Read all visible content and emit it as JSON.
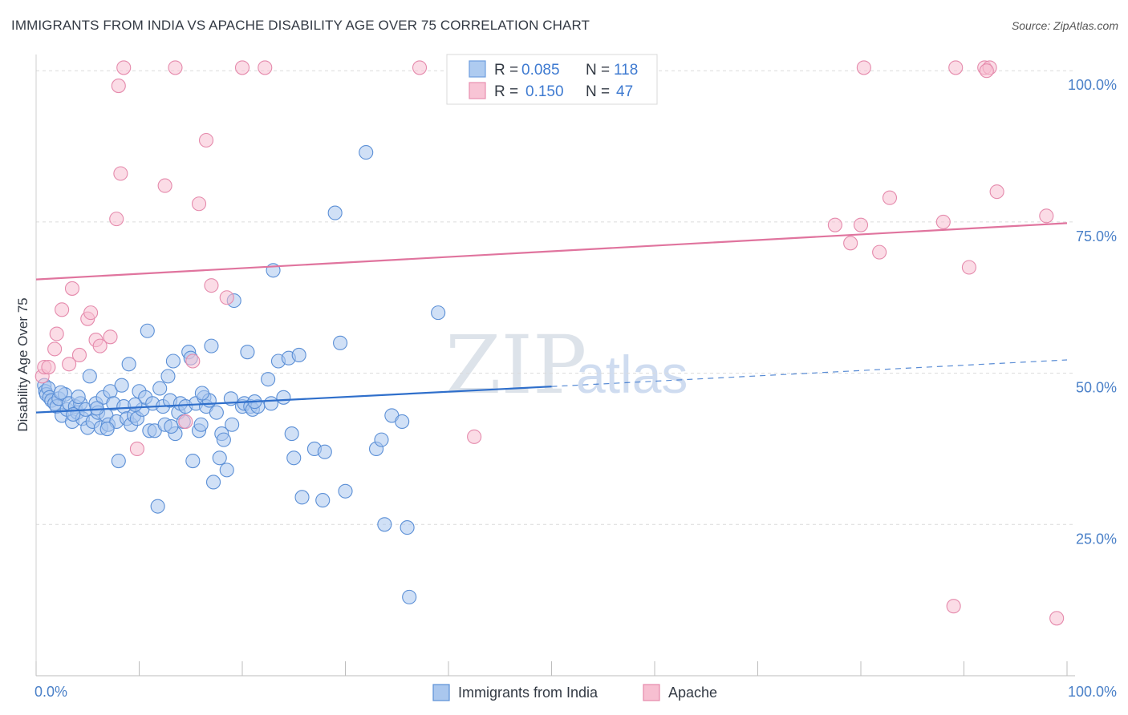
{
  "title": "IMMIGRANTS FROM INDIA VS APACHE DISABILITY AGE OVER 75 CORRELATION CHART",
  "source": "Source: ZipAtlas.com",
  "watermark": {
    "zip": "ZIP",
    "atlas": "atlas"
  },
  "chart_data": {
    "type": "scatter",
    "ylabel": "Disability Age Over 75",
    "xlabel": "",
    "xlim": [
      0,
      100
    ],
    "ylim": [
      0,
      104
    ],
    "x_tick_labels": [
      "0.0%",
      "100.0%"
    ],
    "y_ticks": [
      25,
      50,
      75,
      100
    ],
    "y_tick_labels": [
      "25.0%",
      "50.0%",
      "75.0%",
      "100.0%"
    ],
    "grid": true,
    "legend_top": [
      {
        "r_label": "R =",
        "r_value": "0.085",
        "n_label": "N =",
        "n_value": "118",
        "color": "#6f9fe0",
        "fill": "#aecbf0"
      },
      {
        "r_label": "R =",
        "r_value": "0.150",
        "n_label": "N =",
        "n_value": "47",
        "color": "#e890b0",
        "fill": "#f8c4d5"
      }
    ],
    "series": [
      {
        "name": "Immigrants from India",
        "color": "#5b8fd6",
        "fill": "#aac7ee",
        "trend_color": "#2f6fcb",
        "trend": {
          "x0": 0,
          "y0": 43.5,
          "x1": 50,
          "y1": 47.8,
          "dash_x1": 100,
          "dash_y1": 52.2
        },
        "points": [
          [
            0.8,
            48
          ],
          [
            0.9,
            47
          ],
          [
            1,
            46.5
          ],
          [
            1.2,
            47.5
          ],
          [
            1.3,
            46
          ],
          [
            1.5,
            45.5
          ],
          [
            1.8,
            45
          ],
          [
            2,
            44.5
          ],
          [
            2.2,
            45.8
          ],
          [
            2.5,
            43
          ],
          [
            2.8,
            46.5
          ],
          [
            3,
            44
          ],
          [
            3.2,
            45
          ],
          [
            3.5,
            42
          ],
          [
            3.8,
            44.5
          ],
          [
            4,
            43.5
          ],
          [
            4.3,
            45
          ],
          [
            4.5,
            42.5
          ],
          [
            4.8,
            44
          ],
          [
            5,
            41
          ],
          [
            5.2,
            49.5
          ],
          [
            5.5,
            42
          ],
          [
            5.8,
            45
          ],
          [
            6,
            43.5
          ],
          [
            6.3,
            41
          ],
          [
            6.5,
            46
          ],
          [
            6.8,
            43
          ],
          [
            7,
            41.5
          ],
          [
            7.2,
            47
          ],
          [
            7.5,
            45
          ],
          [
            7.8,
            42
          ],
          [
            8,
            35.5
          ],
          [
            8.3,
            48
          ],
          [
            8.5,
            44.5
          ],
          [
            8.8,
            42.5
          ],
          [
            9,
            51.5
          ],
          [
            9.2,
            41.5
          ],
          [
            9.5,
            43
          ],
          [
            9.8,
            42.5
          ],
          [
            10,
            47
          ],
          [
            10.3,
            44
          ],
          [
            10.6,
            46
          ],
          [
            10.8,
            57
          ],
          [
            11,
            40.5
          ],
          [
            11.3,
            45
          ],
          [
            11.5,
            40.5
          ],
          [
            11.8,
            28
          ],
          [
            12,
            47.5
          ],
          [
            12.3,
            44.5
          ],
          [
            12.5,
            41.5
          ],
          [
            12.8,
            49.5
          ],
          [
            13,
            45.5
          ],
          [
            13.3,
            52
          ],
          [
            13.5,
            40
          ],
          [
            13.8,
            43.5
          ],
          [
            14,
            45
          ],
          [
            14.3,
            42
          ],
          [
            14.5,
            44.5
          ],
          [
            14.8,
            53.5
          ],
          [
            15,
            52.5
          ],
          [
            15.2,
            35.5
          ],
          [
            15.5,
            45
          ],
          [
            15.8,
            40.5
          ],
          [
            16,
            41.5
          ],
          [
            16.3,
            46
          ],
          [
            16.5,
            44.5
          ],
          [
            16.8,
            45.5
          ],
          [
            17,
            54.5
          ],
          [
            17.2,
            32
          ],
          [
            17.5,
            43.5
          ],
          [
            17.8,
            36
          ],
          [
            18,
            40
          ],
          [
            18.2,
            39
          ],
          [
            18.5,
            34
          ],
          [
            19,
            41.5
          ],
          [
            19.2,
            62
          ],
          [
            20,
            44.5
          ],
          [
            20.2,
            45
          ],
          [
            20.5,
            53.5
          ],
          [
            20.8,
            44.5
          ],
          [
            21,
            44
          ],
          [
            21.5,
            44.5
          ],
          [
            22.5,
            49
          ],
          [
            22.8,
            45
          ],
          [
            23,
            67
          ],
          [
            23.5,
            52
          ],
          [
            24,
            46
          ],
          [
            24.5,
            52.5
          ],
          [
            24.8,
            40
          ],
          [
            25,
            36
          ],
          [
            25.5,
            53
          ],
          [
            25.8,
            29.5
          ],
          [
            27,
            37.5
          ],
          [
            27.8,
            29
          ],
          [
            28,
            37
          ],
          [
            29,
            76.5
          ],
          [
            29.5,
            55
          ],
          [
            30,
            30.5
          ],
          [
            32,
            86.5
          ],
          [
            33,
            37.5
          ],
          [
            33.5,
            39
          ],
          [
            33.8,
            25
          ],
          [
            34.5,
            43
          ],
          [
            35.5,
            42
          ],
          [
            36,
            24.5
          ],
          [
            36.2,
            13
          ],
          [
            39,
            60
          ],
          [
            43.5,
            100.5
          ],
          [
            2.4,
            46.8
          ],
          [
            3.6,
            43.2
          ],
          [
            4.1,
            46.1
          ],
          [
            5.9,
            44.2
          ],
          [
            6.9,
            40.8
          ],
          [
            9.6,
            44.8
          ],
          [
            13.1,
            41.2
          ],
          [
            16.1,
            46.7
          ],
          [
            18.9,
            45.8
          ],
          [
            21.2,
            45.3
          ]
        ]
      },
      {
        "name": "Apache",
        "color": "#e58aac",
        "fill": "#f7bfd1",
        "trend_color": "#e0749e",
        "trend": {
          "x0": 0,
          "y0": 65.5,
          "x1": 100,
          "y1": 74.8
        },
        "points": [
          [
            0.6,
            49.5
          ],
          [
            0.8,
            51
          ],
          [
            1.2,
            51
          ],
          [
            1.8,
            54
          ],
          [
            2,
            56.5
          ],
          [
            2.5,
            60.5
          ],
          [
            3.2,
            51.5
          ],
          [
            3.5,
            64
          ],
          [
            4.2,
            53
          ],
          [
            5,
            59
          ],
          [
            5.3,
            60
          ],
          [
            5.8,
            55.5
          ],
          [
            6.2,
            54.5
          ],
          [
            7.2,
            56
          ],
          [
            8,
            97.5
          ],
          [
            8.5,
            100.5
          ],
          [
            8.2,
            83
          ],
          [
            7.8,
            75.5
          ],
          [
            9.8,
            37.5
          ],
          [
            12.5,
            81
          ],
          [
            13.5,
            100.5
          ],
          [
            14.5,
            42
          ],
          [
            15.2,
            52
          ],
          [
            15.8,
            78
          ],
          [
            16.5,
            88.5
          ],
          [
            17,
            64.5
          ],
          [
            18.5,
            62.5
          ],
          [
            20,
            100.5
          ],
          [
            22.2,
            100.5
          ],
          [
            37.2,
            100.5
          ],
          [
            42.5,
            39.5
          ],
          [
            77.5,
            74.5
          ],
          [
            79,
            71.5
          ],
          [
            80,
            74.5
          ],
          [
            80.3,
            100.5
          ],
          [
            81.8,
            70
          ],
          [
            82.8,
            79
          ],
          [
            88,
            75
          ],
          [
            89.2,
            100.5
          ],
          [
            89,
            11.5
          ],
          [
            90.5,
            67.5
          ],
          [
            92,
            100.5
          ],
          [
            92.5,
            100.5
          ],
          [
            93.2,
            80
          ],
          [
            98,
            76
          ],
          [
            99,
            9.5
          ],
          [
            92.2,
            100
          ]
        ]
      }
    ]
  },
  "bottom_legend": [
    {
      "label": "Immigrants from India",
      "fill": "#aac7ee",
      "stroke": "#5b8fd6"
    },
    {
      "label": "Apache",
      "fill": "#f7bfd1",
      "stroke": "#e58aac"
    }
  ]
}
